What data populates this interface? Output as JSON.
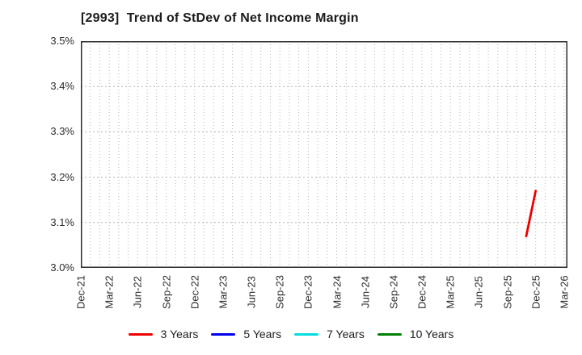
{
  "chart_data": {
    "type": "line",
    "title": "[2993]  Trend of StDev of Net Income Margin",
    "x_axis": {
      "tick_labels": [
        "Dec-21",
        "Mar-22",
        "Jun-22",
        "Sep-22",
        "Dec-22",
        "Mar-23",
        "Jun-23",
        "Sep-23",
        "Dec-23",
        "Mar-24",
        "Jun-24",
        "Sep-24",
        "Dec-24",
        "Mar-25",
        "Jun-25",
        "Sep-25",
        "Dec-25",
        "Mar-26"
      ],
      "months_per_tick": 3,
      "total_months": 51.35,
      "grid_interval_months": 1
    },
    "y_axis": {
      "min": 3.0,
      "max": 3.5,
      "tick_step": 0.1,
      "tick_labels": [
        "3.0%",
        "3.1%",
        "3.2%",
        "3.3%",
        "3.4%",
        "3.5%"
      ],
      "unit": "%"
    },
    "series": [
      {
        "name": "3 Years",
        "color": "#ee0000",
        "points": [
          {
            "label": "Nov-25",
            "month_index": 47,
            "value": 3.07
          },
          {
            "label": "Dec-25",
            "month_index": 48,
            "value": 3.17
          }
        ]
      },
      {
        "name": "5 Years",
        "color": "#0000ee",
        "points": []
      },
      {
        "name": "7 Years",
        "color": "#00dddd",
        "points": []
      },
      {
        "name": "10 Years",
        "color": "#008000",
        "points": []
      }
    ],
    "legend_position": "bottom",
    "grid": {
      "style": "dotted",
      "color": "#b4b4b4"
    },
    "spine_color": "#2b2b2b",
    "background": "#ffffff"
  }
}
